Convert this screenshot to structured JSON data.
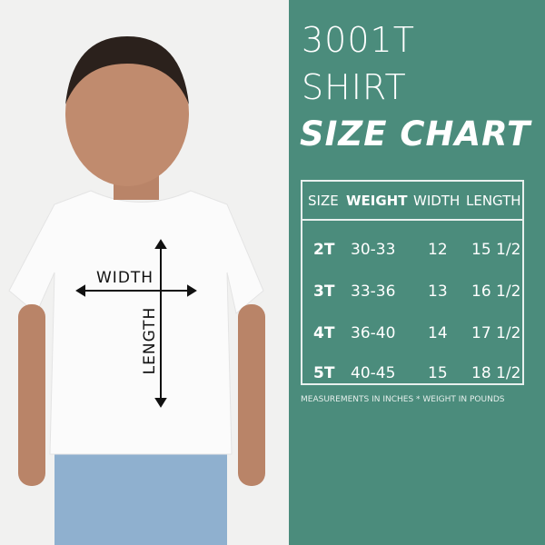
{
  "title": {
    "line1": "3001T",
    "line2": "SHIRT",
    "line3": "SIZE CHART"
  },
  "photo": {
    "width_label": "WIDTH",
    "length_label": "LENGTH"
  },
  "table": {
    "headers": [
      "SIZE",
      "WEIGHT",
      "WIDTH",
      "LENGTH"
    ],
    "rows": [
      [
        "2T",
        "30-33",
        "12",
        "15 1/2"
      ],
      [
        "3T",
        "33-36",
        "13",
        "16 1/2"
      ],
      [
        "4T",
        "36-40",
        "14",
        "17 1/2"
      ],
      [
        "5T",
        "40-45",
        "15",
        "18 1/2"
      ]
    ]
  },
  "note": "MEASUREMENTS IN INCHES * WEIGHT IN POUNDS",
  "colors": {
    "panel": "#4b8c7c",
    "text": "#ffffff"
  }
}
